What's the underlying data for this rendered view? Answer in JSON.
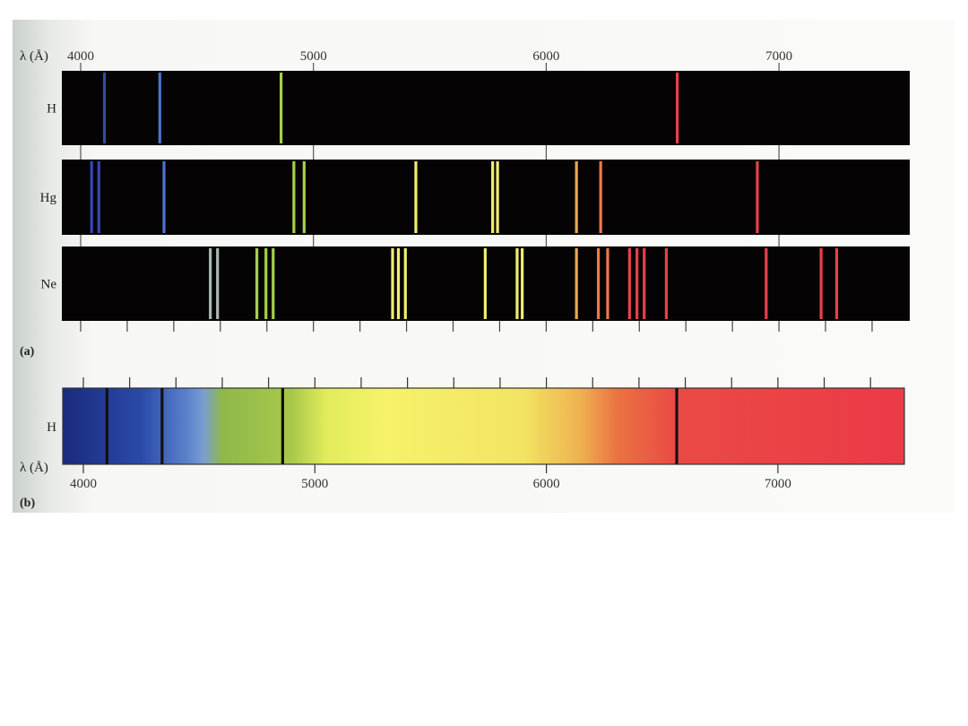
{
  "chart_data": {
    "type": "spectrum",
    "axis_label": "λ (Å)",
    "xlim": [
      3900,
      7520
    ],
    "major_ticks": [
      4000,
      5000,
      6000,
      7000
    ],
    "major_tick_labels": [
      "4000",
      "5000",
      "6000",
      "7000"
    ],
    "minor_tick_step": 200,
    "panel_a": {
      "label": "(a)",
      "type": "emission line spectra",
      "rows": [
        {
          "element": "H",
          "lines": [
            4102,
            4340,
            4861,
            6563
          ]
        },
        {
          "element": "Hg",
          "lines": [
            4047,
            4078,
            4358,
            4916,
            4960,
            5440,
            5770,
            5791,
            6130,
            6234,
            6907
          ]
        },
        {
          "element": "Ne",
          "lines": [
            4557,
            4588,
            4757,
            4796,
            4827,
            5340,
            5365,
            5395,
            5738,
            5875,
            5897,
            6130,
            6224,
            6264,
            6358,
            6390,
            6421,
            6516,
            6945,
            7181,
            7248
          ]
        }
      ]
    },
    "panel_b": {
      "label": "(b)",
      "type": "absorption spectrum",
      "element": "H",
      "lines": [
        4102,
        4340,
        4861,
        6563
      ]
    }
  },
  "colors": {
    "strip_bg": "#050303",
    "absorption_line": "#111111",
    "gradient": [
      {
        "wavelength": 3900,
        "color": "#1b2a7e"
      },
      {
        "wavelength": 4250,
        "color": "#2a4aa8"
      },
      {
        "wavelength": 4450,
        "color": "#5c82cc"
      },
      {
        "wavelength": 4520,
        "color": "#7a9ed0"
      },
      {
        "wavelength": 4600,
        "color": "#8fb84a"
      },
      {
        "wavelength": 4900,
        "color": "#a8c84a"
      },
      {
        "wavelength": 5050,
        "color": "#e2ec5a"
      },
      {
        "wavelength": 5300,
        "color": "#f6f26a"
      },
      {
        "wavelength": 5900,
        "color": "#f2e462"
      },
      {
        "wavelength": 6150,
        "color": "#eeb050"
      },
      {
        "wavelength": 6300,
        "color": "#ea7442"
      },
      {
        "wavelength": 6560,
        "color": "#ea4a44"
      },
      {
        "wavelength": 7520,
        "color": "#ec3a48"
      }
    ]
  }
}
